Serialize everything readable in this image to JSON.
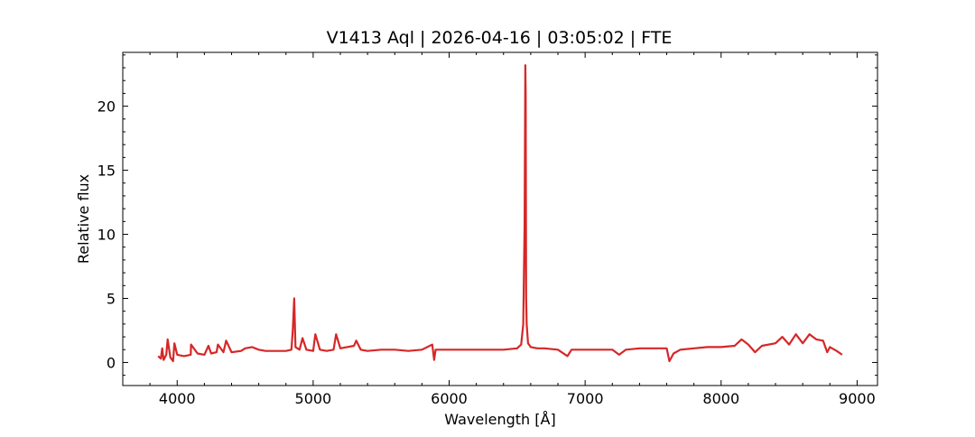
{
  "chart_data": {
    "type": "line",
    "title": "V1413 Aql | 2026-04-16 | 03:05:02 | FTE",
    "xlabel": "Wavelength [Å]",
    "ylabel": "Relative flux",
    "xlim": [
      3600,
      9150
    ],
    "ylim": [
      -1.8,
      24.2
    ],
    "xticks": [
      4000,
      5000,
      6000,
      7000,
      8000,
      9000
    ],
    "yticks": [
      0,
      5,
      10,
      15,
      20
    ],
    "grid": false,
    "series": [
      {
        "color": "#d62728",
        "x": [
          3860,
          3880,
          3890,
          3900,
          3920,
          3930,
          3950,
          3970,
          3980,
          4000,
          4050,
          4100,
          4102,
          4150,
          4200,
          4230,
          4250,
          4290,
          4300,
          4340,
          4360,
          4400,
          4470,
          4500,
          4550,
          4600,
          4650,
          4700,
          4750,
          4800,
          4840,
          4850,
          4861,
          4870,
          4900,
          4922,
          4950,
          5000,
          5016,
          5050,
          5100,
          5150,
          5169,
          5200,
          5250,
          5300,
          5317,
          5350,
          5400,
          5500,
          5600,
          5700,
          5800,
          5876,
          5890,
          5900,
          6000,
          6100,
          6200,
          6300,
          6400,
          6500,
          6530,
          6545,
          6555,
          6560,
          6563,
          6566,
          6570,
          6580,
          6600,
          6650,
          6700,
          6800,
          6870,
          6900,
          7000,
          7100,
          7200,
          7250,
          7300,
          7400,
          7500,
          7600,
          7620,
          7650,
          7700,
          7800,
          7900,
          8000,
          8100,
          8150,
          8200,
          8250,
          8300,
          8400,
          8450,
          8500,
          8550,
          8600,
          8650,
          8700,
          8750,
          8780,
          8800,
          8850,
          8890
        ],
        "y": [
          0.5,
          0.3,
          1.1,
          0.2,
          0.6,
          1.8,
          0.4,
          0.1,
          1.5,
          0.6,
          0.5,
          0.6,
          1.4,
          0.7,
          0.6,
          1.3,
          0.7,
          0.8,
          1.4,
          0.8,
          1.7,
          0.8,
          0.9,
          1.1,
          1.2,
          1.0,
          0.9,
          0.9,
          0.9,
          0.9,
          1.0,
          2.5,
          5.0,
          1.2,
          1.0,
          1.9,
          1.0,
          0.9,
          2.2,
          1.0,
          0.9,
          1.0,
          2.2,
          1.1,
          1.2,
          1.3,
          1.7,
          1.0,
          0.9,
          1.0,
          1.0,
          0.9,
          1.0,
          1.4,
          0.2,
          1.0,
          1.0,
          1.0,
          1.0,
          1.0,
          1.0,
          1.1,
          1.4,
          3.0,
          10.8,
          23.2,
          21.0,
          5.0,
          3.0,
          1.5,
          1.2,
          1.1,
          1.1,
          1.0,
          0.5,
          1.0,
          1.0,
          1.0,
          1.0,
          0.6,
          1.0,
          1.1,
          1.1,
          1.1,
          0.1,
          0.7,
          1.0,
          1.1,
          1.2,
          1.2,
          1.3,
          1.8,
          1.4,
          0.8,
          1.3,
          1.5,
          2.0,
          1.4,
          2.2,
          1.5,
          2.2,
          1.8,
          1.7,
          0.8,
          1.2,
          0.9,
          0.6
        ]
      }
    ]
  }
}
